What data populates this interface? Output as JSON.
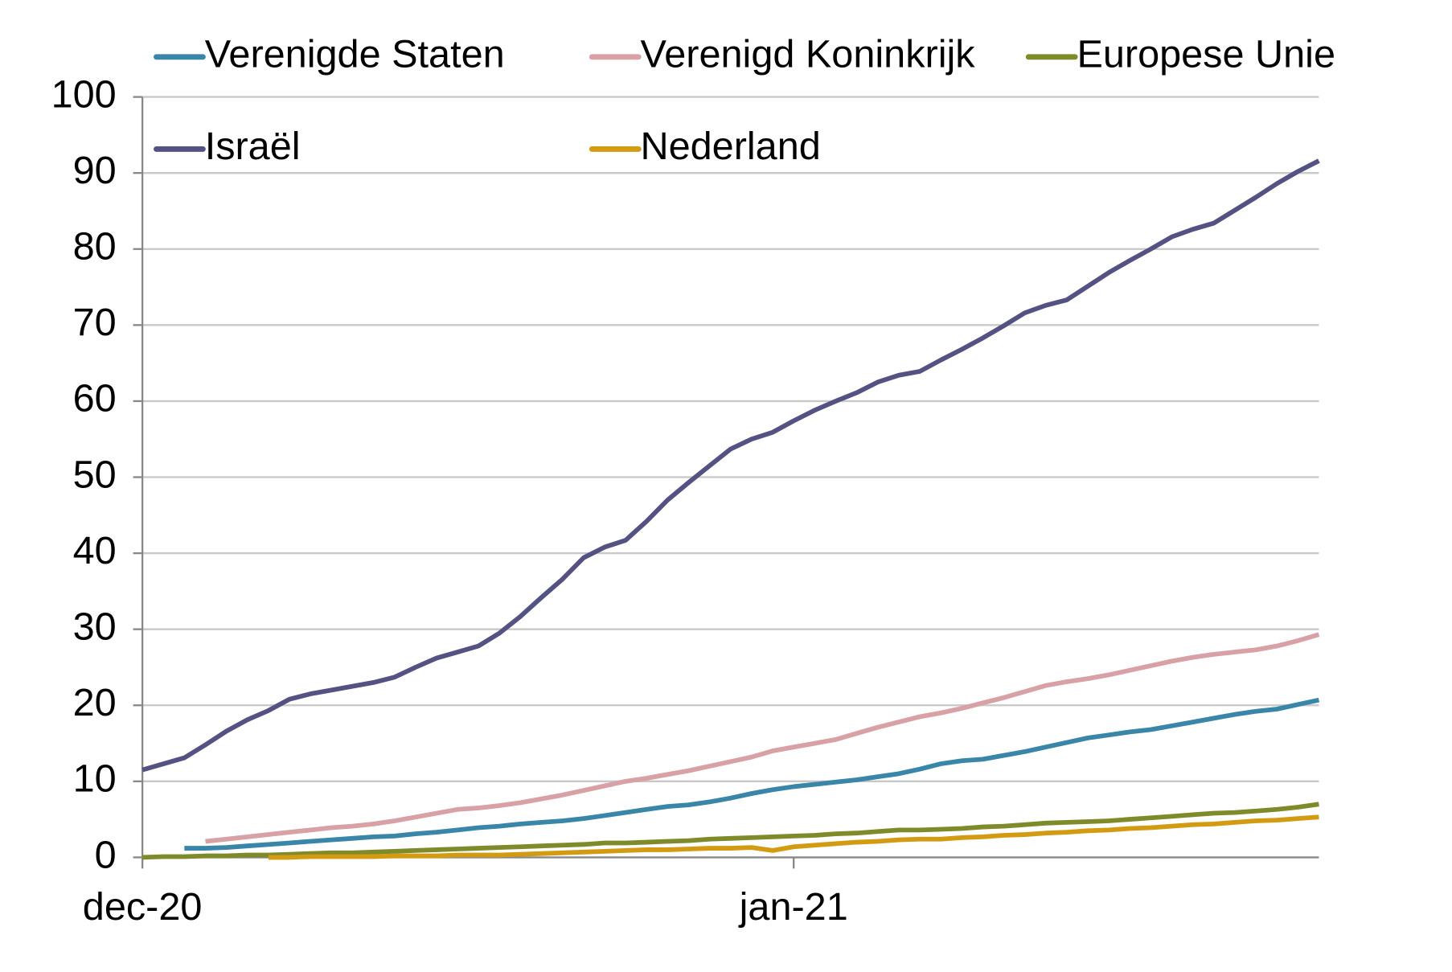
{
  "chart_data": {
    "type": "line",
    "categories": [
      "dec-20",
      null,
      null,
      null,
      null,
      null,
      null,
      null,
      null,
      null,
      null,
      null,
      null,
      null,
      null,
      null,
      null,
      null,
      null,
      null,
      null,
      null,
      null,
      null,
      null,
      null,
      null,
      null,
      null,
      null,
      null,
      "jan-21",
      null,
      null,
      null,
      null,
      null,
      null,
      null,
      null,
      null,
      null,
      null,
      null,
      null,
      null,
      null,
      null,
      null,
      null,
      null,
      null,
      null,
      null,
      null,
      null,
      null
    ],
    "series": [
      {
        "name": "Verenigde Staten",
        "color": "#3a86a8",
        "values": [
          null,
          null,
          1.2,
          1.2,
          1.3,
          1.5,
          1.7,
          1.9,
          2.1,
          2.3,
          2.5,
          2.7,
          2.8,
          3.1,
          3.3,
          3.6,
          3.9,
          4.1,
          4.4,
          4.6,
          4.8,
          5.1,
          5.5,
          5.9,
          6.3,
          6.7,
          6.9,
          7.3,
          7.8,
          8.4,
          8.9,
          9.3,
          9.6,
          9.9,
          10.2,
          10.6,
          11.0,
          11.6,
          12.3,
          12.7,
          12.9,
          13.4,
          13.9,
          14.5,
          15.1,
          15.7,
          16.1,
          16.5,
          16.8,
          17.3,
          17.8,
          18.3,
          18.8,
          19.2,
          19.5,
          20.1,
          20.7
        ]
      },
      {
        "name": "Verenigd Koninkrijk",
        "color": "#d7a1a6",
        "values": [
          null,
          null,
          null,
          2.1,
          2.4,
          2.7,
          3.0,
          3.3,
          3.6,
          3.9,
          4.1,
          4.4,
          4.8,
          5.3,
          5.8,
          6.3,
          6.5,
          6.8,
          7.2,
          7.7,
          8.2,
          8.8,
          9.4,
          10.0,
          10.4,
          10.9,
          11.4,
          12.0,
          12.6,
          13.2,
          14.0,
          14.5,
          15.0,
          15.5,
          16.3,
          17.1,
          17.8,
          18.5,
          19.0,
          19.6,
          20.3,
          21.0,
          21.8,
          22.6,
          23.1,
          23.5,
          24.0,
          24.6,
          25.2,
          25.8,
          26.3,
          26.7,
          27.0,
          27.3,
          27.8,
          28.5,
          29.3
        ]
      },
      {
        "name": "Europese Unie",
        "color": "#7f8b2a",
        "values": [
          0.0,
          0.1,
          0.1,
          0.2,
          0.2,
          0.3,
          0.3,
          0.4,
          0.5,
          0.6,
          0.6,
          0.7,
          0.8,
          0.9,
          1.0,
          1.1,
          1.2,
          1.3,
          1.4,
          1.5,
          1.6,
          1.7,
          1.9,
          1.9,
          2.0,
          2.1,
          2.2,
          2.4,
          2.5,
          2.6,
          2.7,
          2.8,
          2.9,
          3.1,
          3.2,
          3.4,
          3.6,
          3.6,
          3.7,
          3.8,
          4.0,
          4.1,
          4.3,
          4.5,
          4.6,
          4.7,
          4.8,
          5.0,
          5.2,
          5.4,
          5.6,
          5.8,
          5.9,
          6.1,
          6.3,
          6.6,
          7.0
        ]
      },
      {
        "name": "Israël",
        "color": "#545282",
        "values": [
          11.5,
          12.3,
          13.1,
          14.8,
          16.6,
          18.1,
          19.3,
          20.8,
          21.5,
          22.0,
          22.5,
          23.0,
          23.7,
          25.0,
          26.2,
          27.0,
          27.8,
          29.5,
          31.7,
          34.2,
          36.6,
          39.4,
          40.8,
          41.7,
          44.2,
          47.0,
          49.3,
          51.5,
          53.7,
          55.0,
          55.9,
          57.4,
          58.8,
          60.0,
          61.1,
          62.5,
          63.4,
          63.9,
          65.4,
          66.8,
          68.3,
          69.9,
          71.6,
          72.6,
          73.3,
          75.1,
          76.9,
          78.5,
          80.0,
          81.6,
          82.6,
          83.4,
          85.1,
          86.8,
          88.6,
          90.2,
          91.6
        ]
      },
      {
        "name": "Nederland",
        "color": "#d39b12",
        "values": [
          null,
          null,
          null,
          null,
          null,
          null,
          0.0,
          0.0,
          0.1,
          0.1,
          0.1,
          0.1,
          0.2,
          0.2,
          0.2,
          0.3,
          0.3,
          0.3,
          0.4,
          0.5,
          0.6,
          0.7,
          0.8,
          0.9,
          1.0,
          1.0,
          1.1,
          1.2,
          1.2,
          1.3,
          0.9,
          1.4,
          1.6,
          1.8,
          2.0,
          2.1,
          2.3,
          2.4,
          2.4,
          2.6,
          2.7,
          2.9,
          3.0,
          3.2,
          3.3,
          3.5,
          3.6,
          3.8,
          3.9,
          4.1,
          4.3,
          4.4,
          4.6,
          4.8,
          4.9,
          5.1,
          5.3
        ]
      }
    ],
    "ylim": [
      0,
      100
    ],
    "yticks": [
      0,
      10,
      20,
      30,
      40,
      50,
      60,
      70,
      80,
      90,
      100
    ],
    "grid": true,
    "legend": "top"
  }
}
